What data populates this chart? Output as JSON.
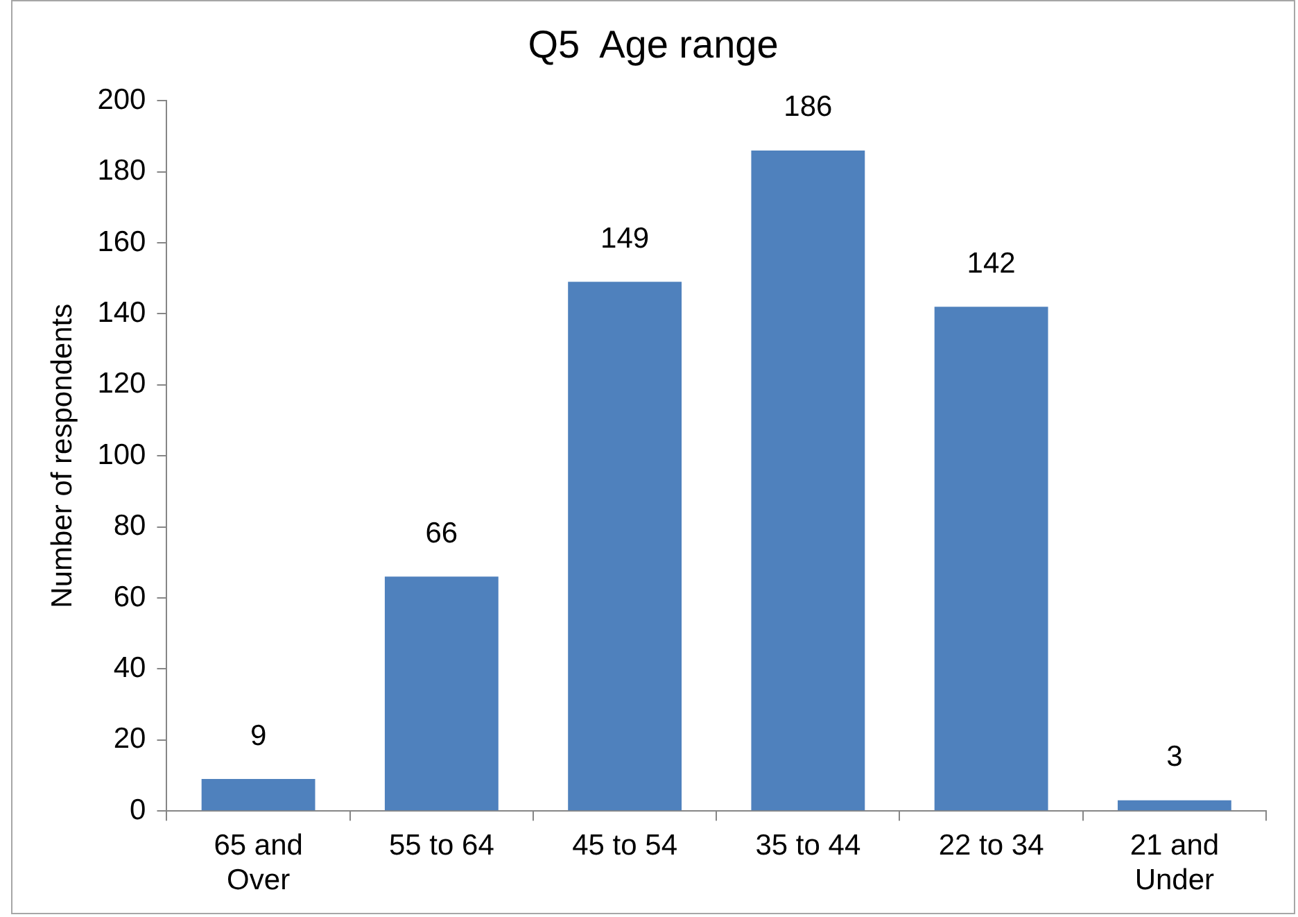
{
  "chart_data": {
    "type": "bar",
    "title": "Q5  Age range",
    "ylabel": "Number of respondents",
    "categories": [
      "65 and Over",
      "55 to 64",
      "45 to 54",
      "35 to 44",
      "22 to 34",
      "21 and Under"
    ],
    "values": [
      9,
      66,
      149,
      186,
      142,
      3
    ],
    "color": "#4f81bd",
    "ylim": [
      0,
      200
    ],
    "yticks": [
      0,
      20,
      40,
      60,
      80,
      100,
      120,
      140,
      160,
      180,
      200
    ],
    "grid": false,
    "data_labels": true
  }
}
